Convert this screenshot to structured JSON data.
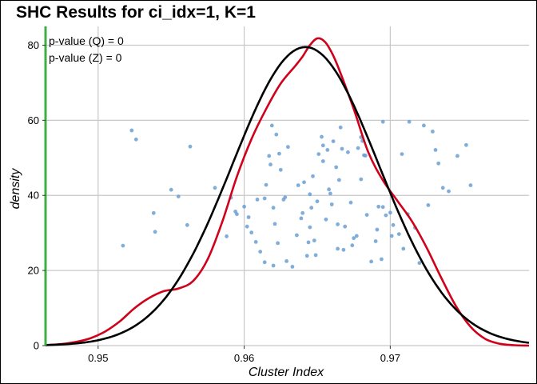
{
  "chart_data": {
    "type": "scatter",
    "title": "SHC Results for ci_idx=1, K=1",
    "xlabel": "Cluster Index",
    "ylabel": "density",
    "xlim": [
      0.9464,
      0.9795
    ],
    "ylim": [
      0,
      85
    ],
    "xticks": [
      0.95,
      0.96,
      0.97
    ],
    "xtick_labels": [
      "0.95",
      "0.96",
      "0.97"
    ],
    "yticks": [
      0,
      20,
      40,
      60,
      80
    ],
    "ytick_labels": [
      "0",
      "20",
      "40",
      "60",
      "80"
    ],
    "grid": true,
    "annotations": [
      "p-value (Q) = 0",
      "p-value (Z) = 0"
    ],
    "reference_line": {
      "x": 0.9464,
      "color": "#3cb043"
    },
    "colors": {
      "points": "#6a9fd2",
      "kde": "#d0021b",
      "normal": "#000000",
      "grid": "#c8c8c8"
    },
    "series": [
      {
        "kind": "points",
        "points": [
          [
            0.9517,
            26.6
          ],
          [
            0.9523,
            57.3
          ],
          [
            0.9526,
            54.9
          ],
          [
            0.9538,
            35.3
          ],
          [
            0.9539,
            30.3
          ],
          [
            0.955,
            41.5
          ],
          [
            0.9555,
            39.7
          ],
          [
            0.9561,
            32.1
          ],
          [
            0.9563,
            53.0
          ],
          [
            0.958,
            42.0
          ],
          [
            0.9588,
            29.1
          ],
          [
            0.9591,
            39.4
          ],
          [
            0.9594,
            35.7
          ],
          [
            0.9595,
            35.0
          ],
          [
            0.96,
            37.0
          ],
          [
            0.9603,
            34.2
          ],
          [
            0.9602,
            31.7
          ],
          [
            0.9605,
            30.1
          ],
          [
            0.9608,
            27.6
          ],
          [
            0.9609,
            38.9
          ],
          [
            0.9611,
            25.0
          ],
          [
            0.9614,
            39.2
          ],
          [
            0.9614,
            22.2
          ],
          [
            0.9615,
            42.8
          ],
          [
            0.9617,
            50.5
          ],
          [
            0.9618,
            48.2
          ],
          [
            0.9619,
            58.6
          ],
          [
            0.962,
            36.7
          ],
          [
            0.962,
            21.3
          ],
          [
            0.9621,
            32.4
          ],
          [
            0.9622,
            56.2
          ],
          [
            0.9623,
            27.3
          ],
          [
            0.9624,
            51.1
          ],
          [
            0.9625,
            46.8
          ],
          [
            0.9627,
            38.9
          ],
          [
            0.9628,
            39.5
          ],
          [
            0.9629,
            22.5
          ],
          [
            0.963,
            52.9
          ],
          [
            0.9633,
            21.0
          ],
          [
            0.9636,
            29.4
          ],
          [
            0.9637,
            42.7
          ],
          [
            0.9639,
            33.9
          ],
          [
            0.964,
            35.3
          ],
          [
            0.9641,
            43.5
          ],
          [
            0.9643,
            23.9
          ],
          [
            0.9644,
            27.5
          ],
          [
            0.9645,
            31.5
          ],
          [
            0.9645,
            40.3
          ],
          [
            0.9646,
            36.7
          ],
          [
            0.9647,
            45.1
          ],
          [
            0.9648,
            28.0
          ],
          [
            0.9649,
            24.1
          ],
          [
            0.965,
            38.4
          ],
          [
            0.9651,
            51.0
          ],
          [
            0.9653,
            55.6
          ],
          [
            0.9654,
            49.1
          ],
          [
            0.9654,
            53.3
          ],
          [
            0.9656,
            33.6
          ],
          [
            0.9657,
            52.1
          ],
          [
            0.9658,
            41.6
          ],
          [
            0.9659,
            40.5
          ],
          [
            0.966,
            37.6
          ],
          [
            0.9661,
            54.4
          ],
          [
            0.9663,
            47.5
          ],
          [
            0.9664,
            25.8
          ],
          [
            0.9664,
            32.3
          ],
          [
            0.9665,
            44.1
          ],
          [
            0.9666,
            58.1
          ],
          [
            0.9667,
            52.4
          ],
          [
            0.9668,
            25.5
          ],
          [
            0.9669,
            31.7
          ],
          [
            0.9671,
            51.5
          ],
          [
            0.9673,
            38.1
          ],
          [
            0.9674,
            26.7
          ],
          [
            0.9675,
            28.6
          ],
          [
            0.9677,
            29.2
          ],
          [
            0.9678,
            52.6
          ],
          [
            0.968,
            44.3
          ],
          [
            0.968,
            55.5
          ],
          [
            0.9681,
            54.5
          ],
          [
            0.9682,
            50.7
          ],
          [
            0.9683,
            50.6
          ],
          [
            0.9684,
            34.8
          ],
          [
            0.9687,
            22.4
          ],
          [
            0.969,
            27.8
          ],
          [
            0.9691,
            30.9
          ],
          [
            0.9692,
            37.0
          ],
          [
            0.9694,
            23.0
          ],
          [
            0.9695,
            59.6
          ],
          [
            0.9695,
            36.9
          ],
          [
            0.9697,
            34.7
          ],
          [
            0.97,
            35.4
          ],
          [
            0.9701,
            29.2
          ],
          [
            0.9702,
            32.1
          ],
          [
            0.9706,
            29.7
          ],
          [
            0.9708,
            51.0
          ],
          [
            0.9709,
            25.8
          ],
          [
            0.9712,
            35.0
          ],
          [
            0.9713,
            59.6
          ],
          [
            0.9717,
            31.4
          ],
          [
            0.972,
            22.0
          ],
          [
            0.9723,
            58.6
          ],
          [
            0.9726,
            37.4
          ],
          [
            0.9729,
            57.0
          ],
          [
            0.9731,
            52.1
          ],
          [
            0.9733,
            48.5
          ],
          [
            0.9736,
            42.0
          ],
          [
            0.974,
            41.1
          ],
          [
            0.9746,
            50.5
          ],
          [
            0.9752,
            53.4
          ],
          [
            0.9755,
            42.7
          ]
        ]
      },
      {
        "kind": "kde",
        "x": [
          0.9464,
          0.9475,
          0.9485,
          0.9495,
          0.9505,
          0.9515,
          0.9525,
          0.9535,
          0.9545,
          0.9555,
          0.9565,
          0.9575,
          0.9585,
          0.9595,
          0.9605,
          0.9615,
          0.9625,
          0.9635,
          0.964,
          0.9645,
          0.965,
          0.9655,
          0.966,
          0.9665,
          0.9675,
          0.9685,
          0.9695,
          0.9705,
          0.9715,
          0.9725,
          0.9735,
          0.9745,
          0.9755,
          0.9765,
          0.9775,
          0.9785,
          0.9795
        ],
        "y": [
          0.1,
          0.4,
          1.0,
          2.0,
          3.8,
          6.5,
          10.0,
          12.7,
          14.5,
          15.2,
          17.2,
          23.0,
          33.0,
          45.0,
          55.0,
          63.0,
          69.8,
          74.5,
          77.0,
          80.0,
          81.8,
          81.0,
          78.0,
          73.5,
          63.0,
          51.5,
          44.0,
          38.5,
          33.0,
          26.0,
          18.0,
          10.5,
          5.0,
          1.8,
          0.5,
          0.1,
          0.0
        ]
      },
      {
        "kind": "normal",
        "mean": 0.9642,
        "sd": 0.00501,
        "peak": 79.5
      }
    ]
  }
}
